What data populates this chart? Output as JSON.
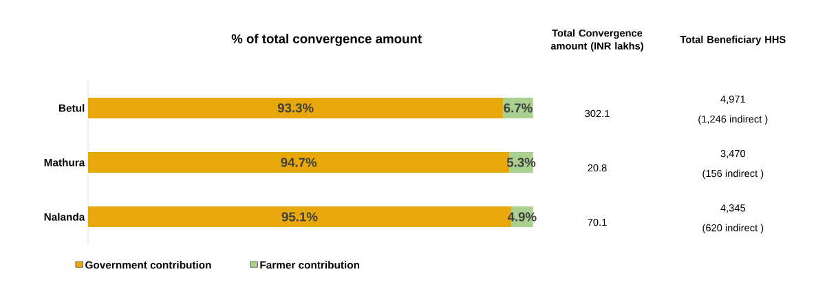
{
  "chart_data": {
    "type": "bar",
    "orientation": "horizontal",
    "stacked": true,
    "title": "% of total convergence amount",
    "categories": [
      "Betul",
      "Mathura",
      "Nalanda"
    ],
    "series": [
      {
        "name": "Government contribution",
        "color": "#e8a80c",
        "values": [
          93.3,
          94.7,
          95.1
        ],
        "value_labels": [
          "93.3%",
          "94.7%",
          "95.1%"
        ]
      },
      {
        "name": "Farmer contribution",
        "color": "#a9d08e",
        "values": [
          6.7,
          5.3,
          4.9
        ],
        "value_labels": [
          "6.7%",
          "5.3%",
          "4.9%"
        ]
      }
    ],
    "tick_labels": "y",
    "legend": "bottom",
    "annotations": [
      "Total Convergence amount (INR lakhs)",
      "Total Beneficiary HHS",
      "302.1",
      "4,971",
      "(1,246 indirect )",
      "20.8",
      "3,470",
      "(156 indirect )",
      "70.1",
      "4,345",
      "(620 indirect )"
    ]
  }
}
